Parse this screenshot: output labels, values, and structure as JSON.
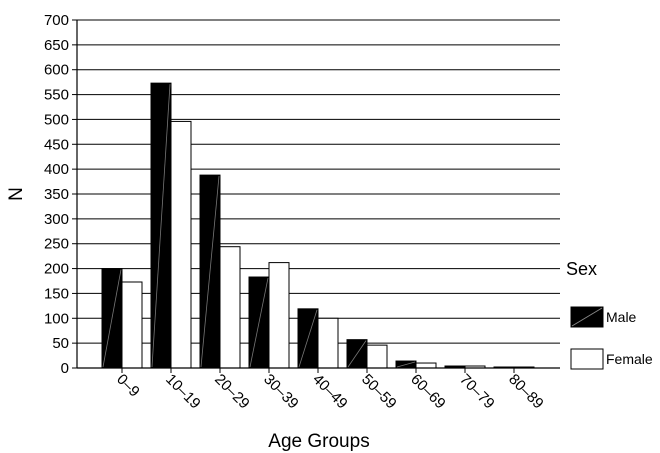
{
  "chart_data": {
    "type": "bar",
    "title": "",
    "xlabel": "Age Groups",
    "ylabel": "N",
    "ylim": [
      0,
      700
    ],
    "yticks": [
      0,
      50,
      100,
      150,
      200,
      250,
      300,
      350,
      400,
      450,
      500,
      550,
      600,
      650,
      700
    ],
    "grid": true,
    "legend": {
      "title": "Sex",
      "position": "right"
    },
    "categories": [
      "0–9",
      "10–19",
      "20–29",
      "30–39",
      "40–49",
      "50–59",
      "60–69",
      "70–79",
      "80–89"
    ],
    "series": [
      {
        "name": "Male",
        "values": [
          200,
          573,
          388,
          183,
          119,
          57,
          14,
          4,
          2
        ],
        "color": "#000000"
      },
      {
        "name": "Female",
        "values": [
          173,
          496,
          244,
          212,
          100,
          46,
          10,
          4,
          2
        ],
        "color": "#ffffff"
      }
    ]
  }
}
